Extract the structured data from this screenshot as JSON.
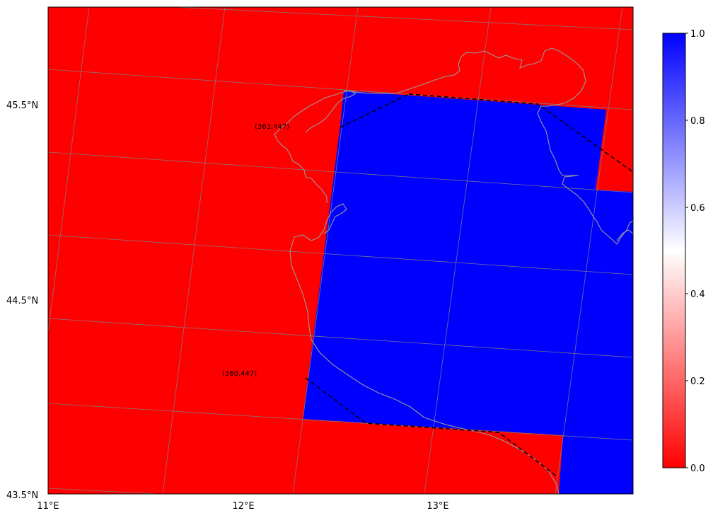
{
  "map": {
    "lon_ticks": [
      "11°E",
      "12°E",
      "13°E"
    ],
    "lat_ticks": [
      "45.5°N",
      "44.5°N",
      "43.5°N"
    ],
    "annotations": [
      "(363,447)",
      "(360,447)"
    ],
    "fill_colors": {
      "value_0": "#ff0000",
      "value_1": "#0000ff"
    },
    "coastline_color": "#999999",
    "gridline_color": "#808080",
    "boundary_line": "black dashed"
  },
  "colorbar": {
    "colormap": "bwr_r (red → white → blue)",
    "ticks": [
      "0.0",
      "0.2",
      "0.4",
      "0.6",
      "0.8",
      "1.0"
    ],
    "min": 0.0,
    "max": 1.0
  }
}
